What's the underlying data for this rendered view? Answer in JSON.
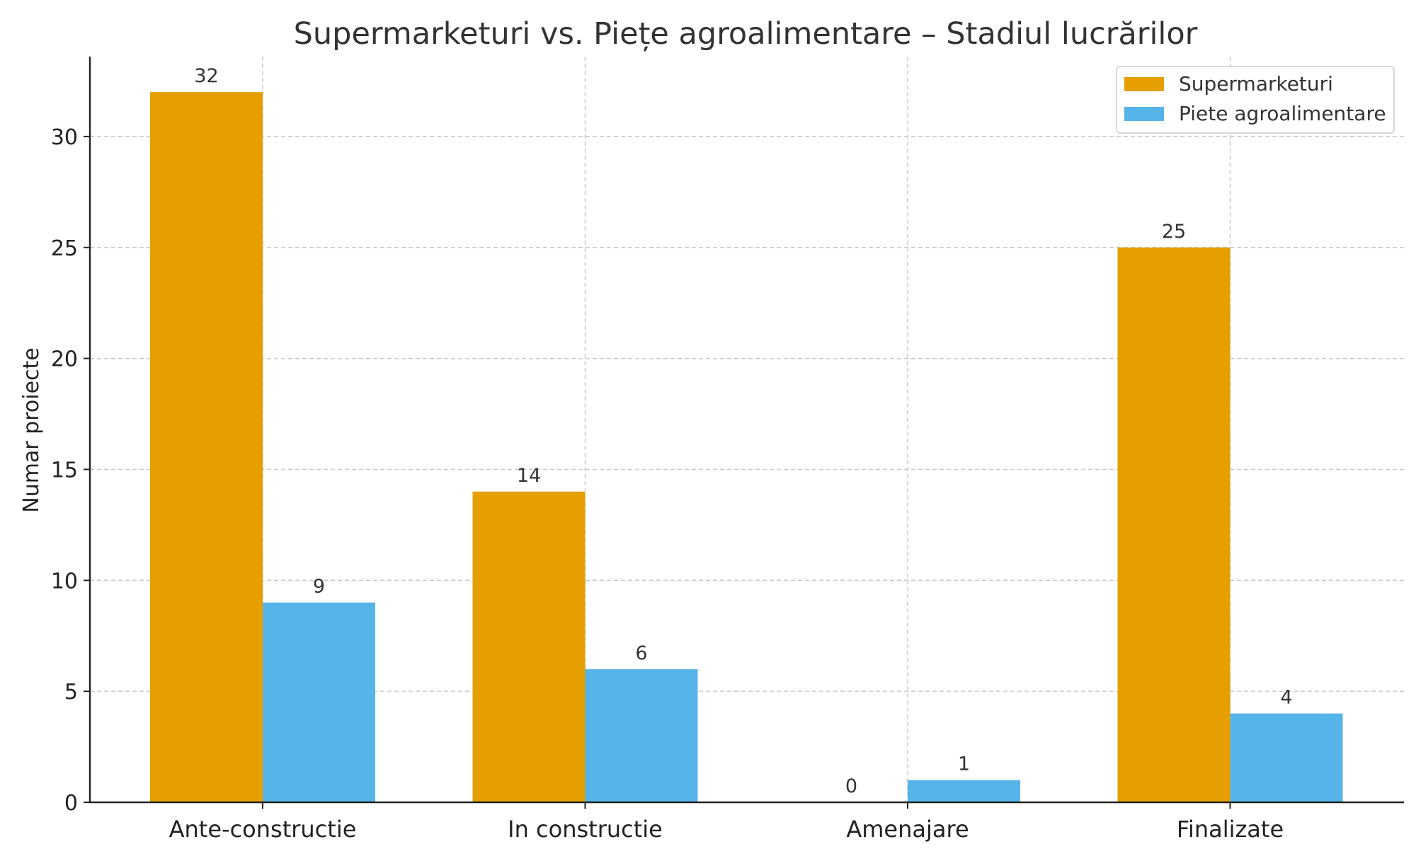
{
  "chart_data": {
    "type": "bar",
    "title": "Supermarketuri vs. Piețe agroalimentare – Stadiul lucrărilor",
    "xlabel": "",
    "ylabel": "Numar proiecte",
    "categories": [
      "Ante-constructie",
      "In constructie",
      "Amenajare",
      "Finalizate"
    ],
    "series": [
      {
        "name": "Supermarketuri",
        "values": [
          32,
          14,
          0,
          25
        ],
        "color": "#E69F00"
      },
      {
        "name": "Piete agroalimentare",
        "values": [
          9,
          6,
          1,
          4
        ],
        "color": "#56B4E9"
      }
    ],
    "ylim": [
      0,
      33.6
    ],
    "yticks": [
      0,
      5,
      10,
      15,
      20,
      25,
      30
    ],
    "grid": true,
    "legend_position": "top-right"
  }
}
